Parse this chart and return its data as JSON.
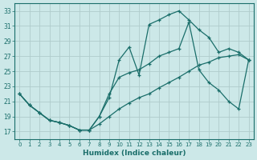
{
  "xlabel": "Humidex (Indice chaleur)",
  "ylabel": "",
  "bg_color": "#cce8e8",
  "grid_color": "#b8d8d8",
  "line_color": "#1a6e6a",
  "xlim": [
    -0.5,
    23.5
  ],
  "ylim": [
    16.0,
    34.0
  ],
  "xticks": [
    0,
    1,
    2,
    3,
    4,
    5,
    6,
    7,
    8,
    9,
    10,
    11,
    12,
    13,
    14,
    15,
    16,
    17,
    18,
    19,
    20,
    21,
    22,
    23
  ],
  "yticks": [
    17,
    19,
    21,
    23,
    25,
    27,
    29,
    31,
    33
  ],
  "line1_x": [
    0,
    1,
    2,
    3,
    4,
    5,
    6,
    7,
    8,
    9,
    10,
    11,
    12,
    13,
    14,
    15,
    16,
    17,
    18,
    19,
    20,
    21,
    22,
    23
  ],
  "line1_y": [
    22.0,
    20.5,
    19.5,
    18.5,
    18.2,
    17.8,
    17.2,
    17.2,
    19.0,
    21.5,
    26.5,
    28.2,
    24.5,
    31.2,
    31.8,
    32.5,
    33.0,
    31.8,
    30.5,
    29.5,
    27.5,
    28.0,
    27.5,
    26.5
  ],
  "line2_x": [
    0,
    1,
    2,
    3,
    4,
    5,
    6,
    7,
    8,
    9,
    10,
    11,
    12,
    13,
    14,
    15,
    16,
    17,
    18,
    19,
    20,
    21,
    22,
    23
  ],
  "line2_y": [
    22.0,
    20.5,
    19.5,
    18.5,
    18.2,
    17.8,
    17.2,
    17.2,
    19.0,
    22.0,
    24.2,
    24.8,
    25.2,
    26.0,
    27.0,
    27.5,
    28.0,
    31.5,
    25.2,
    23.5,
    22.5,
    21.0,
    20.0,
    26.5
  ],
  "line3_x": [
    0,
    1,
    2,
    3,
    4,
    5,
    6,
    7,
    8,
    9,
    10,
    11,
    12,
    13,
    14,
    15,
    16,
    17,
    18,
    19,
    20,
    21,
    22,
    23
  ],
  "line3_y": [
    22.0,
    20.5,
    19.5,
    18.5,
    18.2,
    17.8,
    17.2,
    17.2,
    18.0,
    19.0,
    20.0,
    20.8,
    21.5,
    22.0,
    22.8,
    23.5,
    24.2,
    25.0,
    25.8,
    26.2,
    26.8,
    27.0,
    27.2,
    26.5
  ]
}
